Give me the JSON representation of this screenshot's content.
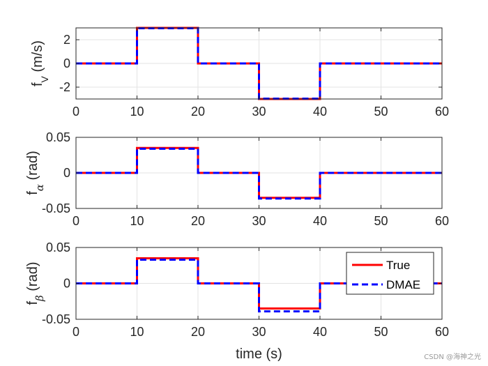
{
  "chart_data": [
    {
      "type": "line",
      "ylabel_main": "f",
      "ylabel_sub": "V",
      "ylabel_unit": "(m/s)",
      "xlim": [
        0,
        60
      ],
      "ylim": [
        -3,
        3
      ],
      "xticks": [
        0,
        10,
        20,
        30,
        40,
        50,
        60
      ],
      "yticks": [
        -2,
        0,
        2
      ],
      "ytick_labels": [
        "-2",
        "0",
        "2"
      ],
      "grid": true,
      "series": [
        {
          "name": "True",
          "color": "#ff0000",
          "style": "solid",
          "x": [
            0,
            10,
            10,
            20,
            20,
            30,
            30,
            40,
            40,
            60
          ],
          "y": [
            0,
            0,
            3,
            3,
            0,
            0,
            -3,
            -3,
            0,
            0
          ]
        },
        {
          "name": "DMAE",
          "color": "#0000ff",
          "style": "dashed",
          "x": [
            0,
            10,
            10,
            20,
            20,
            30,
            30,
            40,
            40,
            60
          ],
          "y": [
            0,
            0,
            2.97,
            2.97,
            0,
            0,
            -2.97,
            -2.97,
            0,
            0
          ]
        }
      ]
    },
    {
      "type": "line",
      "ylabel_main": "f",
      "ylabel_sub": "α",
      "ylabel_unit": "(rad)",
      "xlim": [
        0,
        60
      ],
      "ylim": [
        -0.05,
        0.05
      ],
      "xticks": [
        0,
        10,
        20,
        30,
        40,
        50,
        60
      ],
      "yticks": [
        -0.05,
        0,
        0.05
      ],
      "ytick_labels": [
        "-0.05",
        "0",
        "0.05"
      ],
      "grid": true,
      "series": [
        {
          "name": "True",
          "color": "#ff0000",
          "style": "solid",
          "x": [
            0,
            10,
            10,
            20,
            20,
            30,
            30,
            40,
            40,
            60
          ],
          "y": [
            0,
            0,
            0.035,
            0.035,
            0,
            0,
            -0.035,
            -0.035,
            0,
            0
          ]
        },
        {
          "name": "DMAE",
          "color": "#0000ff",
          "style": "dashed",
          "x": [
            0,
            10,
            10,
            20,
            20,
            30,
            30,
            40,
            40,
            60
          ],
          "y": [
            0,
            0,
            0.034,
            0.034,
            0,
            0,
            -0.036,
            -0.036,
            0,
            0
          ]
        }
      ]
    },
    {
      "type": "line",
      "ylabel_main": "f",
      "ylabel_sub": "β",
      "ylabel_unit": "(rad)",
      "xlabel": "time (s)",
      "xlim": [
        0,
        60
      ],
      "ylim": [
        -0.05,
        0.05
      ],
      "xticks": [
        0,
        10,
        20,
        30,
        40,
        50,
        60
      ],
      "yticks": [
        -0.05,
        0,
        0.05
      ],
      "ytick_labels": [
        "-0.05",
        "0",
        "0.05"
      ],
      "grid": true,
      "legend": {
        "position": "top-right",
        "entries": [
          "True",
          "DMAE"
        ]
      },
      "series": [
        {
          "name": "True",
          "color": "#ff0000",
          "style": "solid",
          "x": [
            0,
            10,
            10,
            20,
            20,
            30,
            30,
            40,
            40,
            60
          ],
          "y": [
            0,
            0,
            0.035,
            0.035,
            0,
            0,
            -0.035,
            -0.035,
            0,
            0
          ]
        },
        {
          "name": "DMAE",
          "color": "#0000ff",
          "style": "dashed",
          "x": [
            0,
            10,
            10,
            20,
            20,
            30,
            30,
            40,
            40,
            60
          ],
          "y": [
            0,
            0,
            0.033,
            0.033,
            0,
            0,
            -0.039,
            -0.039,
            0,
            0
          ]
        }
      ]
    }
  ],
  "watermark": "CSDN @海神之光"
}
